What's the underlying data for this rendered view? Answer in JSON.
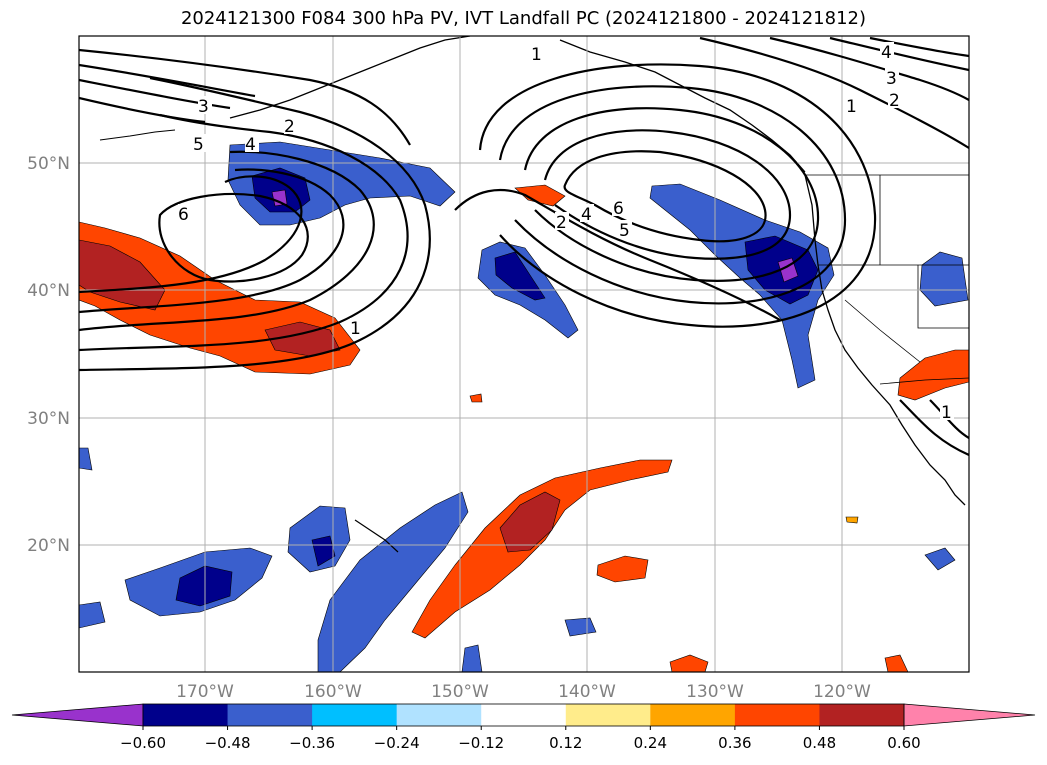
{
  "title": "2024121300 F084 300 hPa PV, IVT Landfall PC (2024121800 - 2024121812)",
  "lat_labels": [
    "50°N",
    "40°N",
    "30°N",
    "20°N"
  ],
  "lon_labels": [
    "170°W",
    "160°W",
    "150°W",
    "140°W",
    "130°W",
    "120°W"
  ],
  "contour_labels": [
    "1",
    "2",
    "3",
    "4",
    "5",
    "6"
  ],
  "colorbar": {
    "ticks": [
      "−0.60",
      "−0.48",
      "−0.36",
      "−0.24",
      "−0.12",
      "0.12",
      "0.24",
      "0.36",
      "0.48",
      "0.60"
    ],
    "colors": [
      "#9932cc",
      "#00008b",
      "#3a5fcd",
      "#00bfff",
      "#b0e2ff",
      "#ffffff",
      "#ffec8b",
      "#ffa500",
      "#ff4500",
      "#b22222",
      "#ff82ab"
    ]
  }
}
